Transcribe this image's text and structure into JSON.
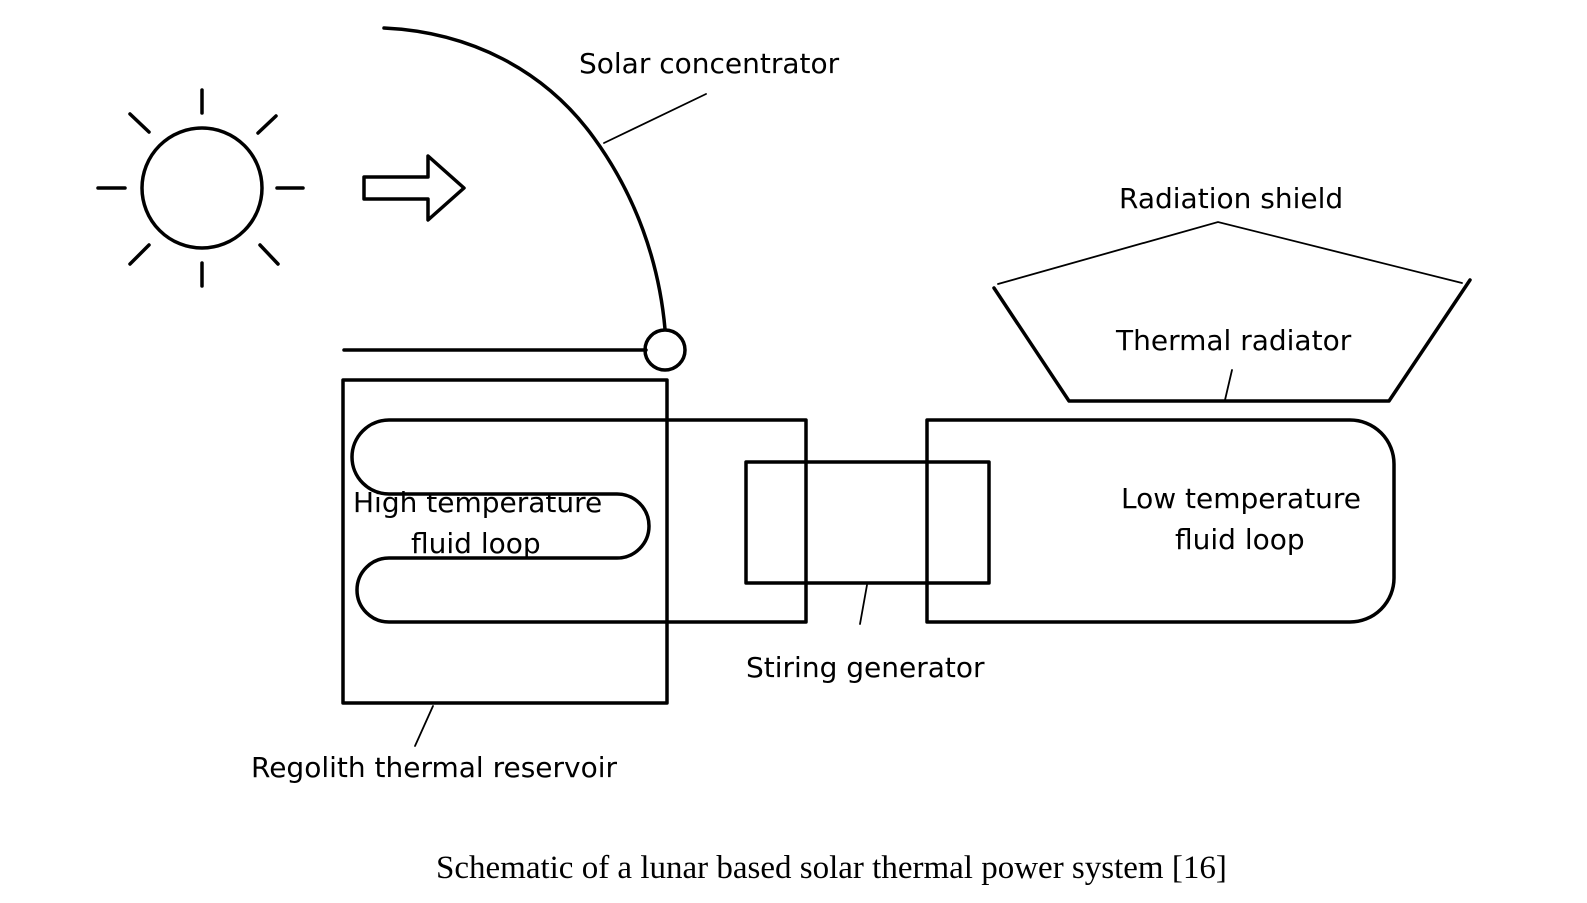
{
  "diagram": {
    "labels": {
      "solar_concentrator": "Solar concentrator",
      "radiation_shield": "Radiation shield",
      "thermal_radiator": "Thermal radiator",
      "high_temp_line1": "High temperature",
      "high_temp_line2": "fluid loop",
      "low_temp_line1": "Low temperature",
      "low_temp_line2": "fluid loop",
      "stirling_generator": "Stiring generator",
      "regolith_reservoir": "Regolith thermal reservoir"
    },
    "icons": {
      "sun": "sun-icon",
      "arrow": "right-arrow-icon"
    }
  },
  "caption": "Schematic of a lunar based solar thermal power system [16]"
}
